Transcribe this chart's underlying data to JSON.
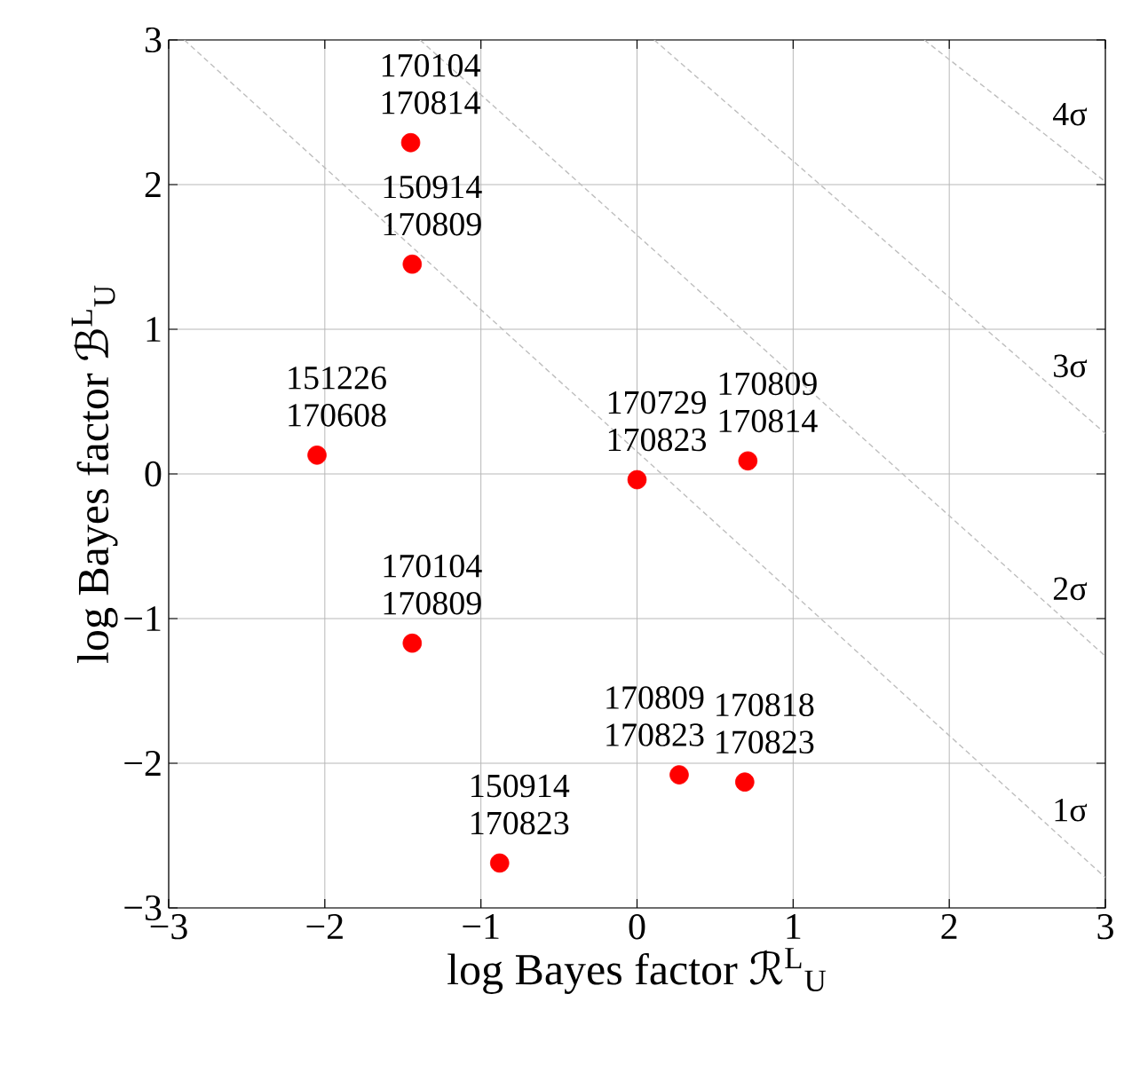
{
  "chart_data": {
    "type": "scatter",
    "xlabel": "log Bayes factor ℛ$^{L}$$_{U}$",
    "ylabel": "log Bayes factor ℬ$^{L}$$_{U}$",
    "xlim": [
      -3,
      3
    ],
    "ylim": [
      -3,
      3
    ],
    "xticks": [
      {
        "value": -3,
        "label": "−3"
      },
      {
        "value": -2,
        "label": "−2"
      },
      {
        "value": -1,
        "label": "−1"
      },
      0,
      1,
      2,
      3
    ],
    "yticks": [
      {
        "value": -3,
        "label": "−3"
      },
      {
        "value": -2,
        "label": "−2"
      },
      {
        "value": -1,
        "label": "−1"
      },
      0,
      1,
      2,
      3
    ],
    "grid": true,
    "marker": "circle",
    "series": [
      {
        "color": "#ff0000",
        "x": [
          -1.45,
          -1.44,
          -2.05,
          0.0,
          0.71,
          -1.44,
          0.27,
          0.69,
          -0.88
        ],
        "values": [
          2.29,
          1.45,
          0.13,
          -0.04,
          0.09,
          -1.17,
          -2.08,
          -2.13,
          -2.69
        ]
      },
      {
        "type": "line",
        "color": "#bebebe",
        "line_style": "dashed",
        "marker": "none",
        "x": [
          -2.9,
          3
        ],
        "values": [
          3,
          -2.79
        ]
      },
      {
        "type": "line",
        "color": "#bebebe",
        "line_style": "dashed",
        "marker": "none",
        "x": [
          -1.39,
          3
        ],
        "values": [
          3,
          -1.26
        ]
      },
      {
        "type": "line",
        "color": "#bebebe",
        "line_style": "dashed",
        "marker": "none",
        "x": [
          0.11,
          3
        ],
        "values": [
          3,
          0.28
        ]
      },
      {
        "type": "line",
        "color": "#bebebe",
        "line_style": "dashed",
        "marker": "none",
        "x": [
          1.84,
          3
        ],
        "values": [
          3,
          2.02
        ]
      }
    ],
    "annotations": [
      {
        "text": "170104",
        "x": -1.45,
        "y": 2.29
      },
      {
        "text": "170814",
        "x": -1.45,
        "y": 2.29
      },
      {
        "text": "150914",
        "x": -1.44,
        "y": 1.45
      },
      {
        "text": "170809",
        "x": -1.44,
        "y": 1.45
      },
      {
        "text": "151226",
        "x": -2.05,
        "y": 0.13
      },
      {
        "text": "170608",
        "x": -2.05,
        "y": 0.13
      },
      {
        "text": "170729",
        "x": 0.0,
        "y": -0.04
      },
      {
        "text": "170823",
        "x": 0.0,
        "y": -0.04
      },
      {
        "text": "170809",
        "x": 0.71,
        "y": 0.09
      },
      {
        "text": "170814",
        "x": 0.71,
        "y": 0.09
      },
      {
        "text": "170104",
        "x": -1.44,
        "y": -1.17
      },
      {
        "text": "170809",
        "x": -1.44,
        "y": -1.17
      },
      {
        "text": "170809",
        "x": 0.27,
        "y": -2.08
      },
      {
        "text": "170823",
        "x": 0.27,
        "y": -2.08
      },
      {
        "text": "170818",
        "x": 0.69,
        "y": -2.13
      },
      {
        "text": "170823",
        "x": 0.69,
        "y": -2.13
      },
      {
        "text": "150914",
        "x": -0.88,
        "y": -2.69
      },
      {
        "text": "170823",
        "x": -0.88,
        "y": -2.69
      },
      "4σ",
      "3σ",
      "2σ",
      "1σ"
    ]
  }
}
